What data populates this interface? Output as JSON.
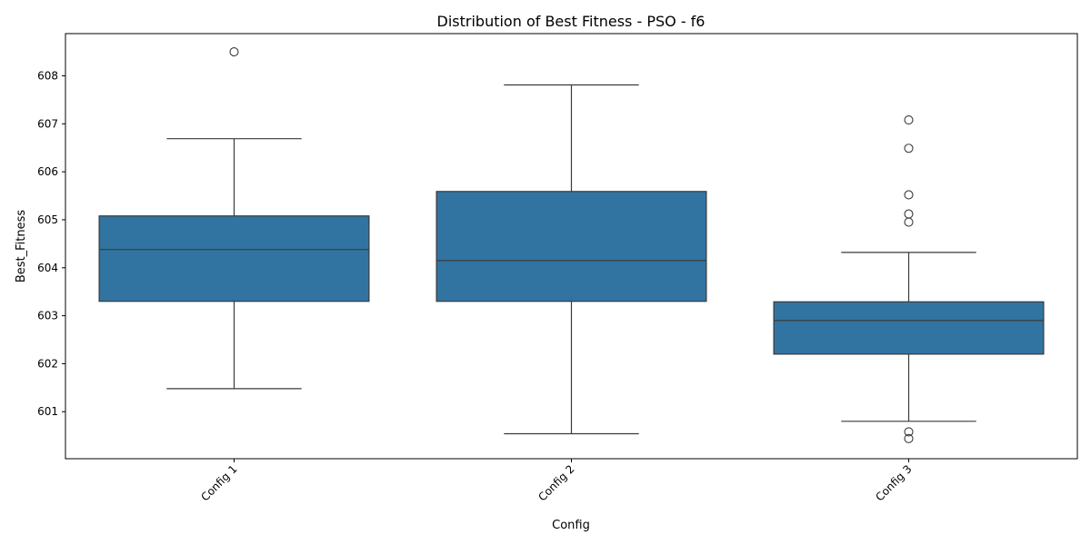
{
  "chart_data": {
    "type": "box",
    "title": "Distribution of Best Fitness - PSO - f6",
    "xlabel": "Config",
    "ylabel": "Best_Fitness",
    "ylim": [
      600.02,
      608.88
    ],
    "yticks": [
      601,
      602,
      603,
      604,
      605,
      606,
      607,
      608
    ],
    "grid": false,
    "box_color": "#3274a1",
    "line_color": "#3a3a3a",
    "categories": [
      "Config 1",
      "Config 2",
      "Config 3"
    ],
    "boxes": [
      {
        "category": "Config 1",
        "whisker_low": 601.48,
        "q1": 603.3,
        "median": 604.38,
        "q3": 605.08,
        "whisker_high": 606.69,
        "outliers": [
          608.5
        ]
      },
      {
        "category": "Config 2",
        "whisker_low": 600.54,
        "q1": 603.3,
        "median": 604.15,
        "q3": 605.59,
        "whisker_high": 607.81,
        "outliers": []
      },
      {
        "category": "Config 3",
        "whisker_low": 600.8,
        "q1": 602.2,
        "median": 602.9,
        "q3": 603.29,
        "whisker_high": 604.32,
        "outliers": [
          607.08,
          606.49,
          605.52,
          605.12,
          604.95,
          600.58,
          600.44
        ]
      }
    ]
  }
}
